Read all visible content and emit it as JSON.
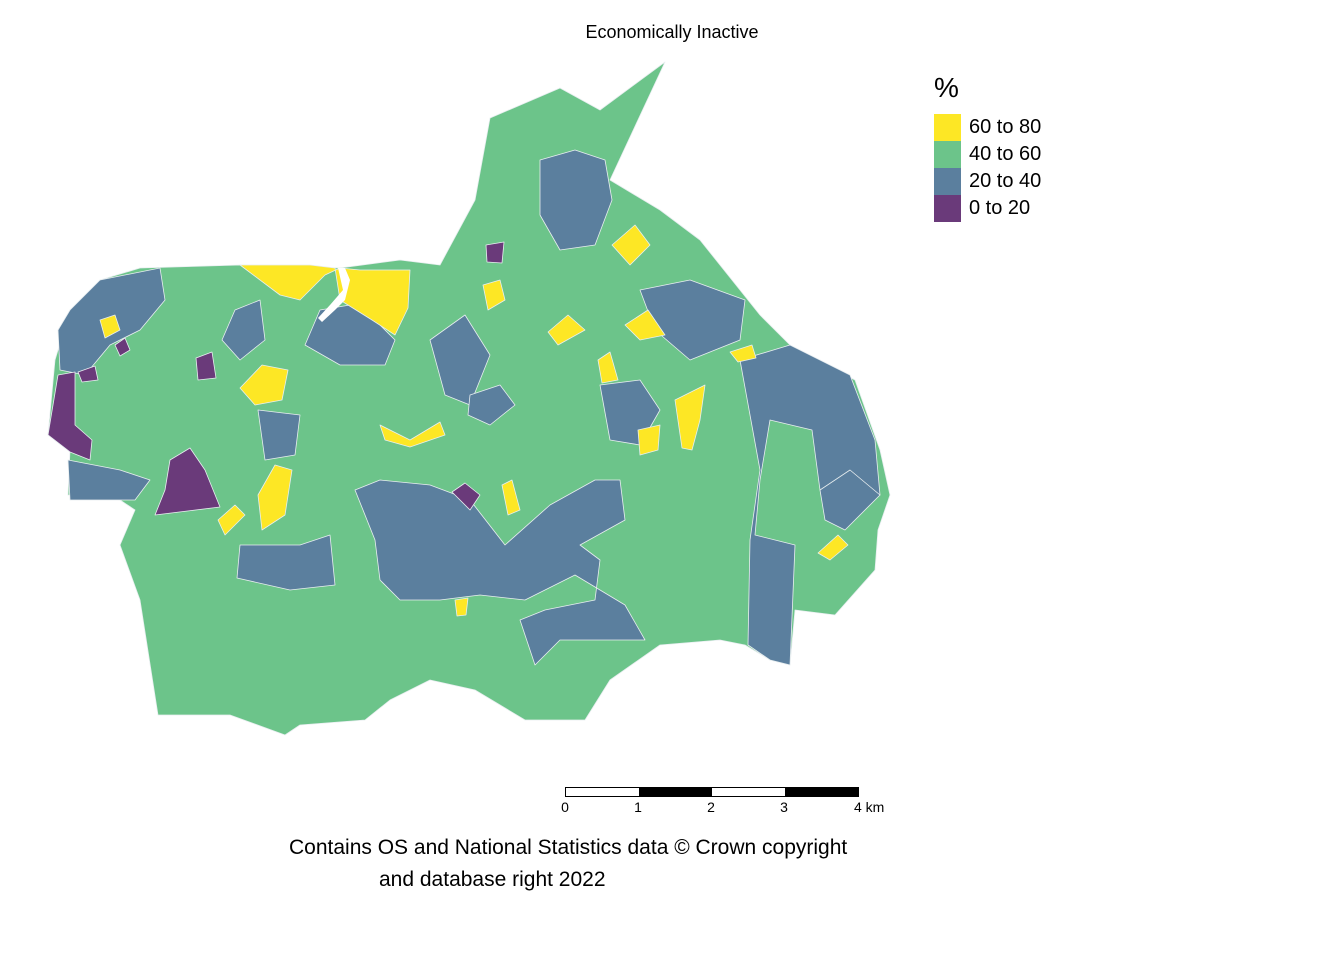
{
  "map": {
    "title": "Economically Inactive",
    "colors": {
      "c60_80": "#fde725",
      "c40_60": "#6cc48a",
      "c20_40": "#5b7f9e",
      "c0_20": "#6a3a7a",
      "boundary": "#e8eef0"
    }
  },
  "legend": {
    "title": "%",
    "items": [
      {
        "label": "60 to 80",
        "color": "#fde725"
      },
      {
        "label": "40 to 60",
        "color": "#6cc48a"
      },
      {
        "label": "20 to 40",
        "color": "#5b7f9e"
      },
      {
        "label": "0 to 20",
        "color": "#6a3a7a"
      }
    ]
  },
  "scalebar": {
    "labels": [
      "0",
      "1",
      "2",
      "3",
      "4 km"
    ],
    "segment_colors": [
      "#ffffff",
      "#000000",
      "#ffffff",
      "#000000"
    ]
  },
  "caption": {
    "line1": "Contains OS and National Statistics data © Crown copyright",
    "line2": "and database right 2022"
  }
}
